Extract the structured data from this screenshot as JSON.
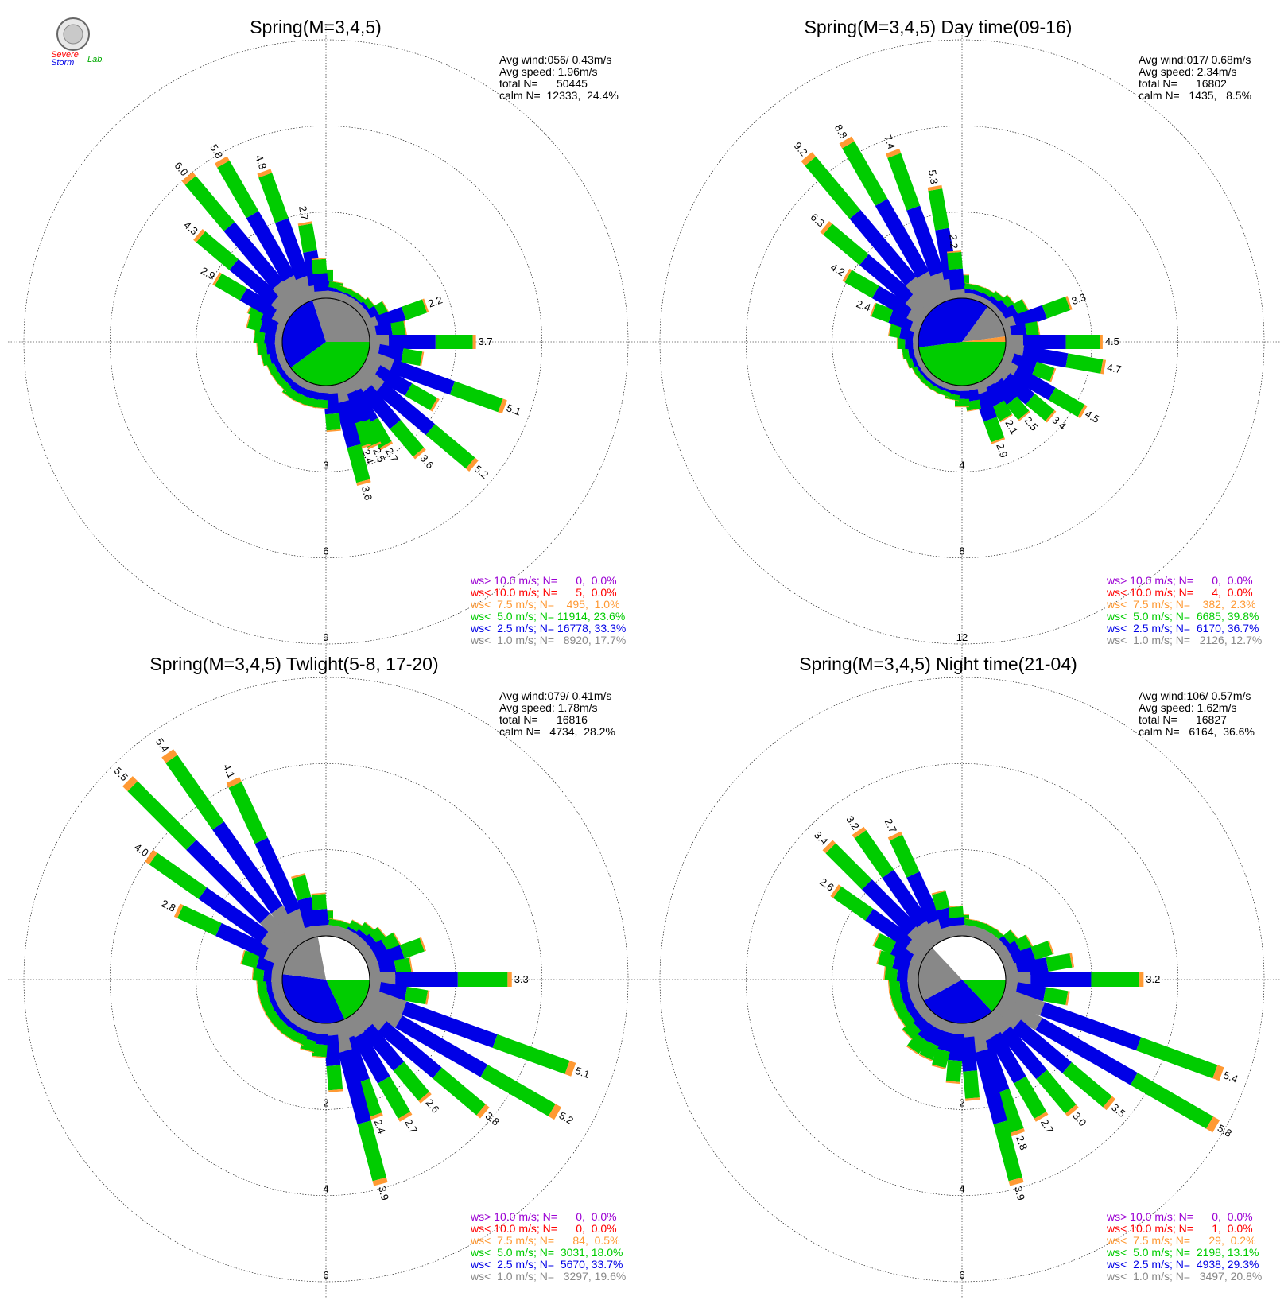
{
  "logo": {
    "line1": "Severe",
    "line2": "Storm",
    "line3": "Lab."
  },
  "colors": {
    "ws_gt10": "#9b00d3",
    "ws_lt10": "#ff0000",
    "ws_lt75": "#ff9933",
    "ws_lt5": "#00cc00",
    "ws_lt25": "#0000e6",
    "ws_lt1": "#888888"
  },
  "chart_data": [
    {
      "type": "polar-bar",
      "title": "Spring(M=3,4,5)",
      "stats": [
        "Avg wind:056/ 0.43m/s",
        "Avg speed: 1.96m/s",
        "total N=      50445",
        "calm N=  12333,  24.4%"
      ],
      "rings": [
        3,
        6,
        9
      ],
      "ring_labels": [
        "3",
        "6",
        "9"
      ],
      "center_pie": {
        "gray": 30,
        "blue": 30,
        "green": 40
      },
      "bars": [
        {
          "dir": 0,
          "total": 1.0
        },
        {
          "dir": 10,
          "total": 0.6
        },
        {
          "dir": 20,
          "total": 0.5
        },
        {
          "dir": 30,
          "total": 0.5
        },
        {
          "dir": 40,
          "total": 0.5
        },
        {
          "dir": 50,
          "total": 0.6
        },
        {
          "dir": 60,
          "total": 0.9
        },
        {
          "dir": 70,
          "total": 2.2,
          "label": "2.2"
        },
        {
          "dir": 80,
          "total": 1.3
        },
        {
          "dir": 90,
          "total": 3.7,
          "label": "3.7"
        },
        {
          "dir": 100,
          "total": 1.9
        },
        {
          "dir": 110,
          "total": 5.1,
          "label": "5.1"
        },
        {
          "dir": 120,
          "total": 2.9
        },
        {
          "dir": 130,
          "total": 5.2,
          "label": "5.2"
        },
        {
          "dir": 140,
          "total": 3.6,
          "label": "3.6"
        },
        {
          "dir": 150,
          "total": 2.7,
          "label": "2.7"
        },
        {
          "dir": 155,
          "total": 2.5,
          "label": "2.5"
        },
        {
          "dir": 160,
          "total": 2.4,
          "label": "2.4"
        },
        {
          "dir": 165,
          "total": 3.6,
          "label": "3.6"
        },
        {
          "dir": 175,
          "total": 1.6
        },
        {
          "dir": 185,
          "total": 0.8
        },
        {
          "dir": 195,
          "total": 0.8
        },
        {
          "dir": 205,
          "total": 0.8
        },
        {
          "dir": 215,
          "total": 0.8
        },
        {
          "dir": 225,
          "total": 0.7
        },
        {
          "dir": 235,
          "total": 0.7
        },
        {
          "dir": 245,
          "total": 0.7
        },
        {
          "dir": 255,
          "total": 0.8
        },
        {
          "dir": 265,
          "total": 0.9
        },
        {
          "dir": 275,
          "total": 1.0
        },
        {
          "dir": 285,
          "total": 1.3
        },
        {
          "dir": 295,
          "total": 1.4
        },
        {
          "dir": 300,
          "total": 2.9,
          "label": "2.9"
        },
        {
          "dir": 310,
          "total": 4.3,
          "label": "4.3"
        },
        {
          "dir": 320,
          "total": 6.0,
          "label": "6.0"
        },
        {
          "dir": 330,
          "total": 5.8,
          "label": "5.8"
        },
        {
          "dir": 340,
          "total": 4.8,
          "label": "4.8"
        },
        {
          "dir": 350,
          "total": 2.7,
          "label": "2.7"
        },
        {
          "dir": 355,
          "total": 1.4
        }
      ],
      "legend": [
        {
          "key": "ws_gt10",
          "text": "ws> 10.0 m/s; N=      0,  0.0%"
        },
        {
          "key": "ws_lt10",
          "text": "ws< 10.0 m/s; N=      5,  0.0%"
        },
        {
          "key": "ws_lt75",
          "text": "ws<  7.5 m/s; N=    495,  1.0%"
        },
        {
          "key": "ws_lt5",
          "text": "ws<  5.0 m/s; N= 11914, 23.6%"
        },
        {
          "key": "ws_lt25",
          "text": "ws<  2.5 m/s; N= 16778, 33.3%"
        },
        {
          "key": "ws_lt1",
          "text": "ws<  1.0 m/s; N=   8920, 17.7%"
        }
      ]
    },
    {
      "type": "polar-bar",
      "title": "Spring(M=3,4,5) Day time(09-16)",
      "stats": [
        "Avg wind:017/ 0.68m/s",
        "Avg speed: 2.34m/s",
        "total N=      16802",
        "calm N=   1435,   8.5%"
      ],
      "rings": [
        4,
        8,
        12
      ],
      "ring_labels": [
        "4",
        "8",
        "12"
      ],
      "center_pie": {
        "gray": 13,
        "blue": 37,
        "green": 48,
        "orange": 2
      },
      "bars": [
        {
          "dir": 0,
          "total": 1.1
        },
        {
          "dir": 10,
          "total": 0.7
        },
        {
          "dir": 20,
          "total": 0.7
        },
        {
          "dir": 30,
          "total": 0.7
        },
        {
          "dir": 40,
          "total": 0.8
        },
        {
          "dir": 50,
          "total": 1.0
        },
        {
          "dir": 60,
          "total": 1.4
        },
        {
          "dir": 70,
          "total": 3.3,
          "label": "3.3"
        },
        {
          "dir": 80,
          "total": 1.6
        },
        {
          "dir": 90,
          "total": 4.5,
          "label": "4.5"
        },
        {
          "dir": 100,
          "total": 4.7,
          "label": "4.7"
        },
        {
          "dir": 110,
          "total": 2.5
        },
        {
          "dir": 120,
          "total": 4.5,
          "label": "4.5"
        },
        {
          "dir": 130,
          "total": 3.4,
          "label": "3.4"
        },
        {
          "dir": 140,
          "total": 2.5,
          "label": "2.5"
        },
        {
          "dir": 150,
          "total": 2.1,
          "label": "2.1"
        },
        {
          "dir": 160,
          "total": 2.9,
          "label": "2.9"
        },
        {
          "dir": 170,
          "total": 1.2
        },
        {
          "dir": 180,
          "total": 1.0
        },
        {
          "dir": 190,
          "total": 0.7
        },
        {
          "dir": 200,
          "total": 0.6
        },
        {
          "dir": 210,
          "total": 0.6
        },
        {
          "dir": 220,
          "total": 0.6
        },
        {
          "dir": 230,
          "total": 0.6
        },
        {
          "dir": 240,
          "total": 0.6
        },
        {
          "dir": 250,
          "total": 0.7
        },
        {
          "dir": 260,
          "total": 0.8
        },
        {
          "dir": 270,
          "total": 1.0
        },
        {
          "dir": 280,
          "total": 1.4
        },
        {
          "dir": 290,
          "total": 2.4,
          "label": "2.4"
        },
        {
          "dir": 300,
          "total": 4.2,
          "label": "4.2"
        },
        {
          "dir": 310,
          "total": 6.3,
          "label": "6.3"
        },
        {
          "dir": 320,
          "total": 9.2,
          "label": "9.2"
        },
        {
          "dir": 330,
          "total": 8.8,
          "label": "8.8"
        },
        {
          "dir": 340,
          "total": 7.4,
          "label": "7.4"
        },
        {
          "dir": 350,
          "total": 5.3,
          "label": "5.3"
        },
        {
          "dir": 355,
          "total": 2.2,
          "label": "2.2"
        }
      ],
      "legend": [
        {
          "key": "ws_gt10",
          "text": "ws> 10.0 m/s; N=      0,  0.0%"
        },
        {
          "key": "ws_lt10",
          "text": "ws< 10.0 m/s; N=      4,  0.0%"
        },
        {
          "key": "ws_lt75",
          "text": "ws<  7.5 m/s; N=    382,  2.3%"
        },
        {
          "key": "ws_lt5",
          "text": "ws<  5.0 m/s; N=  6685, 39.8%"
        },
        {
          "key": "ws_lt25",
          "text": "ws<  2.5 m/s; N=  6170, 36.7%"
        },
        {
          "key": "ws_lt1",
          "text": "ws<  1.0 m/s; N=   2126, 12.7%"
        }
      ]
    },
    {
      "type": "polar-bar",
      "title": "Spring(M=3,4,5) Twlight(5-8, 17-20)",
      "stats": [
        "Avg wind:079/ 0.41m/s",
        "Avg speed: 1.78m/s",
        "total N=      16816",
        "calm N=   4734,  28.2%"
      ],
      "rings": [
        2,
        4,
        6
      ],
      "ring_labels": [
        "2",
        "4",
        "6"
      ],
      "center_pie": {
        "gray": 20,
        "blue": 34,
        "green": 18
      },
      "bars": [
        {
          "dir": 0,
          "total": 0.6
        },
        {
          "dir": 10,
          "total": 0.4
        },
        {
          "dir": 20,
          "total": 0.4
        },
        {
          "dir": 30,
          "total": 0.5
        },
        {
          "dir": 40,
          "total": 0.6
        },
        {
          "dir": 50,
          "total": 0.7
        },
        {
          "dir": 60,
          "total": 0.9
        },
        {
          "dir": 70,
          "total": 1.4
        },
        {
          "dir": 80,
          "total": 1.0
        },
        {
          "dir": 90,
          "total": 3.3,
          "label": "3.3"
        },
        {
          "dir": 100,
          "total": 1.4
        },
        {
          "dir": 110,
          "total": 5.1,
          "label": "5.1"
        },
        {
          "dir": 120,
          "total": 5.2,
          "label": "5.2"
        },
        {
          "dir": 130,
          "total": 3.8,
          "label": "3.8"
        },
        {
          "dir": 140,
          "total": 2.6,
          "label": "2.6"
        },
        {
          "dir": 150,
          "total": 2.7,
          "label": "2.7"
        },
        {
          "dir": 160,
          "total": 2.4,
          "label": "2.4"
        },
        {
          "dir": 165,
          "total": 3.9,
          "label": "3.9"
        },
        {
          "dir": 175,
          "total": 1.6
        },
        {
          "dir": 185,
          "total": 0.8
        },
        {
          "dir": 195,
          "total": 0.7
        },
        {
          "dir": 205,
          "total": 0.6
        },
        {
          "dir": 215,
          "total": 0.6
        },
        {
          "dir": 225,
          "total": 0.6
        },
        {
          "dir": 235,
          "total": 0.6
        },
        {
          "dir": 245,
          "total": 0.6
        },
        {
          "dir": 255,
          "total": 0.6
        },
        {
          "dir": 265,
          "total": 0.6
        },
        {
          "dir": 275,
          "total": 0.7
        },
        {
          "dir": 285,
          "total": 1.0
        },
        {
          "dir": 295,
          "total": 2.8,
          "label": "2.8"
        },
        {
          "dir": 305,
          "total": 4.0,
          "label": "4.0"
        },
        {
          "dir": 315,
          "total": 5.5,
          "label": "5.5"
        },
        {
          "dir": 325,
          "total": 5.4,
          "label": "5.4"
        },
        {
          "dir": 335,
          "total": 4.1,
          "label": "4.1"
        },
        {
          "dir": 345,
          "total": 1.5
        },
        {
          "dir": 355,
          "total": 1.0
        }
      ],
      "legend": [
        {
          "key": "ws_gt10",
          "text": "ws> 10.0 m/s; N=      0,  0.0%"
        },
        {
          "key": "ws_lt10",
          "text": "ws< 10.0 m/s; N=      0,  0.0%"
        },
        {
          "key": "ws_lt75",
          "text": "ws<  7.5 m/s; N=      84,  0.5%"
        },
        {
          "key": "ws_lt5",
          "text": "ws<  5.0 m/s; N=  3031, 18.0%"
        },
        {
          "key": "ws_lt25",
          "text": "ws<  2.5 m/s; N=  5670, 33.7%"
        },
        {
          "key": "ws_lt1",
          "text": "ws<  1.0 m/s; N=   3297, 19.6%"
        }
      ]
    },
    {
      "type": "polar-bar",
      "title": "Spring(M=3,4,5) Night time(21-04)",
      "stats": [
        "Avg wind:106/ 0.57m/s",
        "Avg speed: 1.62m/s",
        "total N=      16827",
        "calm N=   6164,  36.6%"
      ],
      "rings": [
        2,
        4,
        6
      ],
      "ring_labels": [
        "2",
        "4",
        "6"
      ],
      "center_pie": {
        "gray": 21,
        "blue": 29,
        "green": 13
      },
      "bars": [
        {
          "dir": 0,
          "total": 0.5
        },
        {
          "dir": 10,
          "total": 0.4
        },
        {
          "dir": 20,
          "total": 0.4
        },
        {
          "dir": 30,
          "total": 0.4
        },
        {
          "dir": 40,
          "total": 0.4
        },
        {
          "dir": 50,
          "total": 0.6
        },
        {
          "dir": 60,
          "total": 0.8
        },
        {
          "dir": 70,
          "total": 1.2
        },
        {
          "dir": 80,
          "total": 1.6
        },
        {
          "dir": 90,
          "total": 3.2,
          "label": "3.2"
        },
        {
          "dir": 100,
          "total": 1.5
        },
        {
          "dir": 110,
          "total": 5.4,
          "label": "5.4"
        },
        {
          "dir": 120,
          "total": 5.8,
          "label": "5.8"
        },
        {
          "dir": 130,
          "total": 3.5,
          "label": "3.5"
        },
        {
          "dir": 140,
          "total": 3.0,
          "label": "3.0"
        },
        {
          "dir": 150,
          "total": 2.7,
          "label": "2.7"
        },
        {
          "dir": 160,
          "total": 2.8,
          "label": "2.8"
        },
        {
          "dir": 165,
          "total": 3.9,
          "label": "3.9"
        },
        {
          "dir": 175,
          "total": 1.8
        },
        {
          "dir": 185,
          "total": 1.4
        },
        {
          "dir": 195,
          "total": 1.1
        },
        {
          "dir": 205,
          "total": 1.0
        },
        {
          "dir": 215,
          "total": 1.0
        },
        {
          "dir": 225,
          "total": 0.8
        },
        {
          "dir": 235,
          "total": 0.7
        },
        {
          "dir": 245,
          "total": 0.7
        },
        {
          "dir": 255,
          "total": 0.7
        },
        {
          "dir": 265,
          "total": 0.7
        },
        {
          "dir": 275,
          "total": 0.8
        },
        {
          "dir": 285,
          "total": 1.0
        },
        {
          "dir": 295,
          "total": 1.2
        },
        {
          "dir": 305,
          "total": 2.6,
          "label": "2.6"
        },
        {
          "dir": 315,
          "total": 3.4,
          "label": "3.4"
        },
        {
          "dir": 325,
          "total": 3.2,
          "label": "3.2"
        },
        {
          "dir": 335,
          "total": 2.7,
          "label": "2.7"
        },
        {
          "dir": 345,
          "total": 1.1
        },
        {
          "dir": 355,
          "total": 0.7
        }
      ],
      "legend": [
        {
          "key": "ws_gt10",
          "text": "ws> 10.0 m/s; N=      0,  0.0%"
        },
        {
          "key": "ws_lt10",
          "text": "ws< 10.0 m/s; N=      1,  0.0%"
        },
        {
          "key": "ws_lt75",
          "text": "ws<  7.5 m/s; N=      29,  0.2%"
        },
        {
          "key": "ws_lt5",
          "text": "ws<  5.0 m/s; N=  2198, 13.1%"
        },
        {
          "key": "ws_lt25",
          "text": "ws<  2.5 m/s; N=  4938, 29.3%"
        },
        {
          "key": "ws_lt1",
          "text": "ws<  1.0 m/s; N=   3497, 20.8%"
        }
      ]
    }
  ]
}
